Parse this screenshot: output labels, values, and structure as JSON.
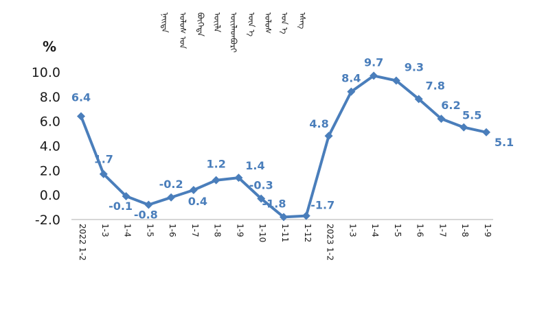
{
  "chart_data": {
    "type": "line",
    "ylabel": "%",
    "ylim": [
      -2.0,
      10.0
    ],
    "yticks": [
      "10.0",
      "8.0",
      "6.0",
      "4.0",
      "2.0",
      "0.0",
      "-2.0"
    ],
    "categories": [
      "2022 1-2",
      "1-3",
      "1-4",
      "1-5",
      "1-6",
      "1-7",
      "1-8",
      "1-9",
      "1-10",
      "1-11",
      "1-12",
      "2023 1-2",
      "1-3",
      "1-4",
      "1-5",
      "1-6",
      "1-7",
      "1-8",
      "1-9"
    ],
    "values": [
      6.4,
      1.7,
      -0.1,
      -0.8,
      -0.2,
      0.4,
      1.2,
      1.4,
      -0.3,
      -1.8,
      -1.7,
      4.8,
      8.4,
      9.7,
      9.3,
      7.8,
      6.2,
      5.5,
      5.1
    ],
    "data_labels": [
      "6.4",
      "1.7",
      "-0.1",
      "-0.8",
      "-0.2",
      "0.4",
      "1.2",
      "1.4",
      "-0.3",
      "-1.8",
      "-1.7",
      "4.8",
      "8.4",
      "9.7",
      "9.3",
      "7.8",
      "6.2",
      "5.5",
      "5.1"
    ],
    "grid": false,
    "legend": "none",
    "series_color": "#4a7ebb",
    "axis_color": "#c8c8c8",
    "text_color": "#1a1a1a"
  }
}
